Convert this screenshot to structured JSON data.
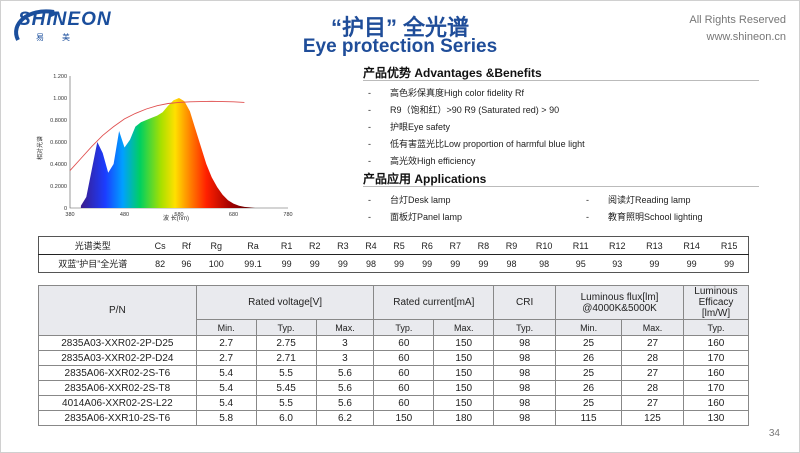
{
  "header": {
    "logo_text": "SHINEON",
    "logo_sub": "易美",
    "title_cn": "“护目” 全光谱",
    "title_en": "Eye protection Series",
    "rights": "All Rights Reserved",
    "website": "www.shineon.cn"
  },
  "colors": {
    "brand_blue": "#1f4d99",
    "header_bg": "#e9eaee",
    "curve_red": "#e05050"
  },
  "chart_data": {
    "type": "area",
    "title": "",
    "xlabel": "波 长(nm)",
    "ylabel": "相对光谱",
    "xlim": [
      380,
      780
    ],
    "ylim": [
      0,
      1.2
    ],
    "x_ticks": [
      "380",
      "480",
      "580",
      "680",
      "780"
    ],
    "y_ticks": [
      "0",
      "0.2000",
      "0.4000",
      "0.6000",
      "0.8000",
      "1.000",
      "1.200"
    ],
    "spectrum": {
      "x": [
        400,
        410,
        420,
        430,
        440,
        450,
        460,
        470,
        480,
        490,
        500,
        510,
        520,
        530,
        540,
        550,
        560,
        570,
        580,
        590,
        600,
        610,
        620,
        630,
        640,
        650,
        660,
        670,
        680,
        690,
        700,
        710,
        720
      ],
      "y": [
        0.02,
        0.1,
        0.35,
        0.6,
        0.5,
        0.32,
        0.4,
        0.7,
        0.55,
        0.62,
        0.74,
        0.78,
        0.8,
        0.82,
        0.84,
        0.87,
        0.93,
        0.98,
        1.0,
        0.97,
        0.88,
        0.72,
        0.56,
        0.4,
        0.28,
        0.19,
        0.12,
        0.07,
        0.04,
        0.02,
        0.01,
        0.005,
        0.0
      ]
    },
    "reference": {
      "x": [
        380,
        400,
        420,
        440,
        460,
        480,
        500,
        520,
        540,
        560,
        580,
        600,
        640,
        680,
        700
      ],
      "y": [
        0.34,
        0.45,
        0.56,
        0.66,
        0.74,
        0.81,
        0.86,
        0.9,
        0.93,
        0.95,
        0.96,
        0.965,
        0.97,
        0.965,
        0.96
      ]
    }
  },
  "benefits": {
    "heading": "产品优势 Advantages &Benefits",
    "items": [
      "高色彩保真度High color fidelity Rf",
      "R9（饱和红）>90  R9 (Saturated red) > 90",
      "护眼Eye safety",
      "低有害蓝光比Low proportion of harmful blue light",
      "高光效High efficiency"
    ]
  },
  "applications": {
    "heading": "产品应用 Applications",
    "items": [
      "台灯Desk  lamp",
      "阅读灯Reading lamp",
      "面板灯Panel lamp",
      "教育照明School lighting"
    ]
  },
  "spectrum_table": {
    "headers": [
      "光谱类型",
      "Cs",
      "Rf",
      "Rg",
      "Ra",
      "R1",
      "R2",
      "R3",
      "R4",
      "R5",
      "R6",
      "R7",
      "R8",
      "R9",
      "R10",
      "R11",
      "R12",
      "R13",
      "R14",
      "R15"
    ],
    "row": [
      "双蓝“护目”全光谱",
      "82",
      "96",
      "100",
      "99.1",
      "99",
      "99",
      "99",
      "98",
      "99",
      "99",
      "99",
      "99",
      "98",
      "98",
      "95",
      "93",
      "99",
      "99",
      "99"
    ]
  },
  "spec_table": {
    "col_pn": "P/N",
    "col_voltage": "Rated voltage[V]",
    "col_current": "Rated current[mA]",
    "col_cri": "CRI",
    "col_flux": "Luminous flux[lm] @4000K&5000K",
    "col_efficacy": "Luminous Efficacy [lm/W]",
    "sub": [
      "Min.",
      "Typ.",
      "Max.",
      "Typ.",
      "Max.",
      "Typ.",
      "Min.",
      "Max.",
      "Typ."
    ],
    "rows": [
      [
        "2835A03-XXR02-2P-D25",
        "2.7",
        "2.75",
        "3",
        "60",
        "150",
        "98",
        "25",
        "27",
        "160"
      ],
      [
        "2835A03-XXR02-2P-D24",
        "2.7",
        "2.71",
        "3",
        "60",
        "150",
        "98",
        "26",
        "28",
        "170"
      ],
      [
        "2835A06-XXR02-2S-T6",
        "5.4",
        "5.5",
        "5.6",
        "60",
        "150",
        "98",
        "25",
        "27",
        "160"
      ],
      [
        "2835A06-XXR02-2S-T8",
        "5.4",
        "5.45",
        "5.6",
        "60",
        "150",
        "98",
        "26",
        "28",
        "170"
      ],
      [
        "4014A06-XXR02-2S-L22",
        "5.4",
        "5.5",
        "5.6",
        "60",
        "150",
        "98",
        "25",
        "27",
        "160"
      ],
      [
        "2835A06-XXR10-2S-T6",
        "5.8",
        "6.0",
        "6.2",
        "150",
        "180",
        "98",
        "115",
        "125",
        "130"
      ]
    ]
  },
  "page_number": "34"
}
